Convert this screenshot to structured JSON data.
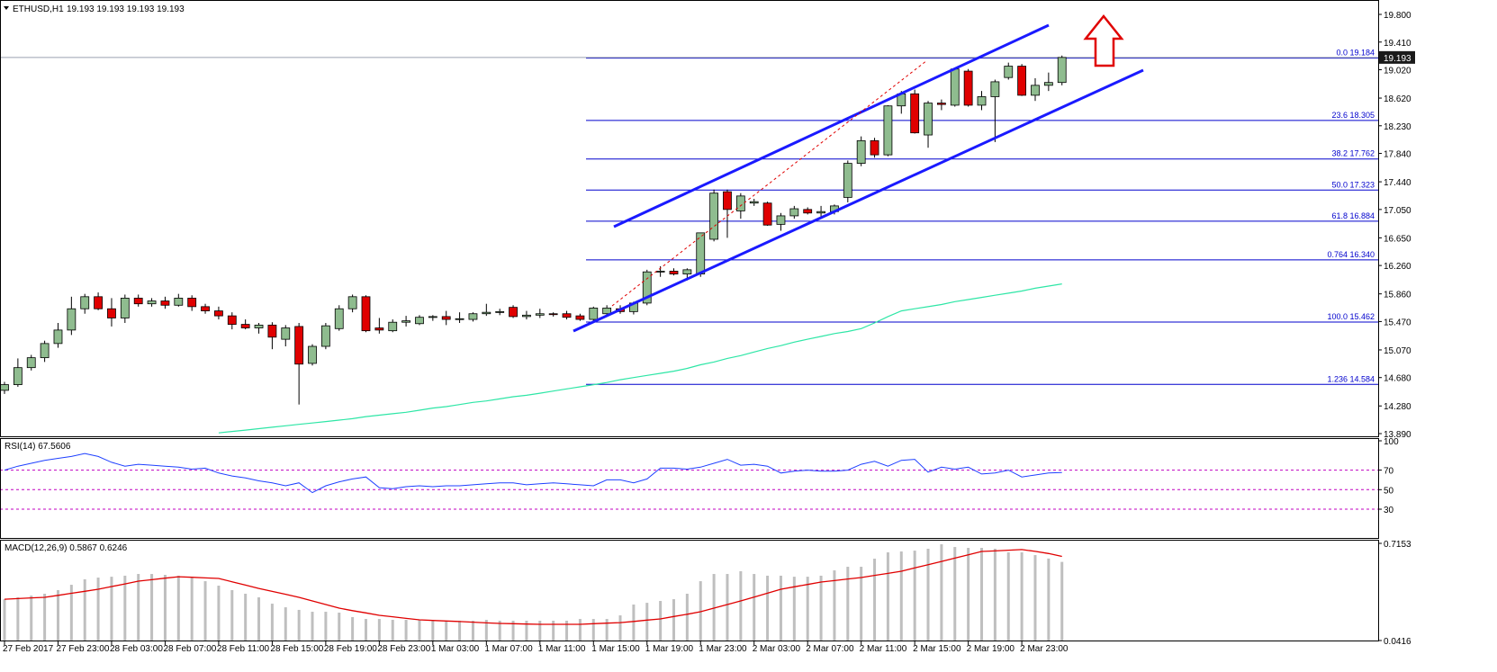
{
  "chart_data": [
    {
      "type": "candlestick",
      "title": "ETHUSD,H1",
      "subtitle": "19.193 19.193 19.193 19.193",
      "categories": [
        "27 Feb 2017",
        null,
        null,
        null,
        "27 Feb 23:00",
        null,
        null,
        null,
        "28 Feb 03:00",
        null,
        null,
        null,
        "28 Feb 07:00",
        null,
        null,
        null,
        "28 Feb 11:00",
        null,
        null,
        null,
        "28 Feb 15:00",
        null,
        null,
        null,
        "28 Feb 19:00",
        null,
        null,
        null,
        "28 Feb 23:00",
        null,
        null,
        null,
        "1 Mar 03:00",
        null,
        null,
        null,
        "1 Mar 07:00",
        null,
        null,
        null,
        "1 Mar 11:00",
        null,
        null,
        null,
        "1 Mar 15:00",
        null,
        null,
        null,
        "1 Mar 19:00",
        null,
        null,
        null,
        "1 Mar 23:00",
        null,
        null,
        null,
        "2 Mar 03:00",
        null,
        null,
        null,
        "2 Mar 07:00",
        null,
        null,
        null,
        "2 Mar 11:00",
        null,
        null,
        null,
        "2 Mar 15:00",
        null,
        null,
        null,
        "2 Mar 19:00",
        null,
        null,
        null,
        "2 Mar 23:00",
        null,
        null,
        null
      ],
      "open": [
        14.5,
        14.58,
        14.82,
        14.96,
        15.16,
        15.35,
        15.65,
        15.82,
        15.65,
        15.52,
        15.8,
        15.72,
        15.76,
        15.7,
        15.8,
        15.68,
        15.62,
        15.55,
        15.43,
        15.38,
        15.42,
        15.22,
        15.4,
        14.88,
        15.12,
        15.37,
        15.65,
        15.82,
        15.38,
        15.34,
        15.46,
        15.44,
        15.53,
        15.54,
        15.5,
        15.5,
        15.58,
        15.6,
        15.67,
        15.54,
        15.56,
        15.58,
        15.58,
        15.55,
        15.5,
        15.58,
        15.65,
        15.61,
        15.73,
        16.17,
        16.18,
        16.14,
        16.14,
        16.63,
        17.3,
        17.03,
        17.14,
        17.14,
        16.84,
        16.96,
        17.05,
        17.0,
        17.02,
        17.22,
        17.7,
        18.02,
        17.82,
        18.51,
        18.68,
        18.1,
        18.55,
        18.52,
        19.0,
        18.52,
        18.64,
        18.91,
        19.07,
        18.66,
        18.8,
        18.84
      ],
      "high": [
        14.62,
        14.95,
        15.0,
        15.2,
        15.45,
        15.82,
        15.86,
        15.88,
        15.8,
        15.85,
        15.85,
        15.8,
        15.82,
        15.86,
        15.84,
        15.72,
        15.68,
        15.6,
        15.5,
        15.45,
        15.46,
        15.42,
        15.45,
        15.15,
        15.45,
        15.7,
        15.85,
        15.84,
        15.52,
        15.5,
        15.55,
        15.56,
        15.56,
        15.62,
        15.6,
        15.6,
        15.72,
        15.65,
        15.7,
        15.62,
        15.65,
        15.6,
        15.62,
        15.58,
        15.68,
        15.7,
        15.7,
        15.75,
        16.2,
        16.25,
        16.22,
        16.22,
        16.72,
        17.33,
        17.33,
        17.28,
        17.2,
        17.16,
        17.0,
        17.1,
        17.08,
        17.1,
        17.12,
        17.74,
        18.08,
        18.06,
        18.52,
        18.72,
        18.74,
        18.58,
        18.6,
        19.05,
        19.03,
        18.72,
        18.88,
        19.12,
        19.1,
        18.9,
        18.98,
        19.22
      ],
      "low": [
        14.45,
        14.55,
        14.78,
        14.9,
        15.1,
        15.28,
        15.58,
        15.63,
        15.4,
        15.45,
        15.68,
        15.68,
        15.65,
        15.68,
        15.62,
        15.58,
        15.5,
        15.36,
        15.36,
        15.3,
        15.08,
        15.12,
        14.3,
        14.85,
        15.08,
        15.34,
        15.6,
        15.32,
        15.3,
        15.32,
        15.4,
        15.42,
        15.48,
        15.42,
        15.45,
        15.47,
        15.55,
        15.56,
        15.52,
        15.5,
        15.52,
        15.54,
        15.5,
        15.48,
        15.45,
        15.55,
        15.58,
        15.57,
        15.7,
        16.1,
        16.12,
        16.05,
        16.1,
        16.6,
        16.65,
        16.92,
        17.1,
        16.82,
        16.75,
        16.92,
        16.98,
        16.95,
        16.98,
        17.15,
        17.66,
        17.78,
        17.8,
        18.4,
        18.12,
        17.92,
        18.45,
        18.5,
        18.5,
        18.45,
        18.0,
        18.88,
        18.65,
        18.58,
        18.72,
        18.8
      ],
      "close": [
        14.58,
        14.82,
        14.96,
        15.16,
        15.35,
        15.65,
        15.82,
        15.65,
        15.52,
        15.8,
        15.72,
        15.76,
        15.7,
        15.8,
        15.68,
        15.62,
        15.55,
        15.43,
        15.38,
        15.42,
        15.25,
        15.38,
        14.87,
        15.12,
        15.41,
        15.65,
        15.82,
        15.34,
        15.35,
        15.46,
        15.48,
        15.53,
        15.54,
        15.5,
        15.51,
        15.58,
        15.6,
        15.61,
        15.54,
        15.56,
        15.58,
        15.57,
        15.53,
        15.5,
        15.66,
        15.66,
        15.61,
        15.73,
        16.17,
        16.18,
        16.14,
        16.2,
        16.72,
        17.28,
        17.05,
        17.24,
        17.16,
        16.83,
        16.96,
        17.06,
        17.0,
        17.02,
        17.1,
        17.7,
        18.02,
        17.82,
        18.51,
        18.68,
        18.13,
        18.55,
        18.53,
        19.03,
        18.52,
        18.64,
        18.85,
        19.07,
        18.66,
        18.8,
        18.84,
        19.193
      ],
      "up_color": "#8fbc8f",
      "down_color": "#e00000",
      "ma": {
        "color": "#2ee6a6",
        "values": [
          null,
          null,
          null,
          null,
          null,
          null,
          null,
          null,
          null,
          null,
          null,
          null,
          null,
          null,
          null,
          null,
          13.9,
          13.92,
          13.94,
          13.96,
          13.98,
          14.0,
          14.02,
          14.04,
          14.06,
          14.08,
          14.1,
          14.13,
          14.15,
          14.17,
          14.19,
          14.22,
          14.25,
          14.27,
          14.3,
          14.33,
          14.35,
          14.38,
          14.41,
          14.43,
          14.46,
          14.49,
          14.52,
          14.55,
          14.58,
          14.61,
          14.65,
          14.68,
          14.71,
          14.74,
          14.77,
          14.81,
          14.86,
          14.9,
          14.95,
          14.99,
          15.04,
          15.09,
          15.13,
          15.18,
          15.22,
          15.26,
          15.3,
          15.33,
          15.37,
          15.45,
          15.54,
          15.62,
          15.65,
          15.68,
          15.71,
          15.75,
          15.78,
          15.81,
          15.84,
          15.87,
          15.9,
          15.94,
          15.97,
          16.0
        ]
      },
      "ylim": [
        13.89,
        19.8
      ],
      "yticks": [
        {
          "value": 19.8,
          "label": "19.800"
        },
        {
          "value": 19.41,
          "label": "19.410"
        },
        {
          "value": 19.02,
          "label": "19.020"
        },
        {
          "value": 18.62,
          "label": "18.620"
        },
        {
          "value": 18.23,
          "label": "18.230"
        },
        {
          "value": 17.84,
          "label": "17.840"
        },
        {
          "value": 17.44,
          "label": "17.440"
        },
        {
          "value": 17.05,
          "label": "17.050"
        },
        {
          "value": 16.65,
          "label": "16.650"
        },
        {
          "value": 16.26,
          "label": "16.260"
        },
        {
          "value": 15.86,
          "label": "15.860"
        },
        {
          "value": 15.47,
          "label": "15.470"
        },
        {
          "value": 15.07,
          "label": "15.070"
        },
        {
          "value": 14.68,
          "label": "14.680"
        },
        {
          "value": 14.28,
          "label": "14.280"
        },
        {
          "value": 13.89,
          "label": "13.890"
        }
      ],
      "price_line": {
        "value": 19.193,
        "label": "19.193"
      },
      "fib_color": "#0000cd",
      "fib_levels": [
        {
          "value": 19.184,
          "label": "0.0  19.184"
        },
        {
          "value": 18.305,
          "label": "23.6  18.305"
        },
        {
          "value": 17.762,
          "label": "38.2  17.762"
        },
        {
          "value": 17.323,
          "label": "50.0  17.323"
        },
        {
          "value": 16.884,
          "label": "61.8  16.884"
        },
        {
          "value": 16.34,
          "label": "0.764  16.340"
        },
        {
          "value": 15.462,
          "label": "100.0  15.462"
        },
        {
          "value": 14.584,
          "label": "1.236  14.584"
        }
      ]
    },
    {
      "type": "line",
      "title": "RSI(14) 67.5606",
      "color": "#1e40ff",
      "values": [
        70,
        74,
        77,
        80,
        82,
        84,
        87,
        84,
        78,
        74,
        76,
        75,
        74,
        73,
        71,
        72,
        67,
        64,
        62,
        59,
        57,
        54,
        57,
        47,
        54,
        58,
        61,
        63,
        52,
        51,
        53,
        54,
        53,
        54,
        54,
        55,
        56,
        57,
        57,
        55,
        56,
        57,
        56,
        55,
        54,
        60,
        60,
        57,
        61,
        72,
        72,
        71,
        73,
        77,
        81,
        75,
        76,
        74,
        67,
        69,
        70,
        69,
        69,
        70,
        76,
        79,
        74,
        80,
        81,
        68,
        73,
        71,
        73,
        66,
        67,
        70,
        63,
        65,
        67,
        67.5606
      ],
      "ylim": [
        0,
        100
      ],
      "yticks": [
        100,
        70,
        50,
        30
      ],
      "levels": [
        70,
        50,
        30
      ],
      "level_color": "#c000c0"
    },
    {
      "type": "macd",
      "title": "MACD(12,26,9) 0.5867 0.6246",
      "series": [
        {
          "style": "bar",
          "color": "#bfbfbf",
          "values": [
            0.328,
            0.341,
            0.353,
            0.366,
            0.391,
            0.428,
            0.466,
            0.478,
            0.484,
            0.491,
            0.503,
            0.503,
            0.497,
            0.491,
            0.478,
            0.453,
            0.422,
            0.391,
            0.366,
            0.341,
            0.297,
            0.272,
            0.254,
            0.241,
            0.241,
            0.235,
            0.204,
            0.191,
            0.191,
            0.185,
            0.185,
            0.185,
            0.179,
            0.179,
            0.179,
            0.179,
            0.185,
            0.179,
            0.179,
            0.179,
            0.179,
            0.179,
            0.179,
            0.191,
            0.191,
            0.191,
            0.216,
            0.291,
            0.303,
            0.316,
            0.328,
            0.366,
            0.453,
            0.503,
            0.503,
            0.522,
            0.503,
            0.491,
            0.491,
            0.484,
            0.484,
            0.491,
            0.528,
            0.553,
            0.553,
            0.609,
            0.653,
            0.659,
            0.665,
            0.678,
            0.709,
            0.69,
            0.684,
            0.684,
            0.678,
            0.653,
            0.653,
            0.634,
            0.61,
            0.5867
          ]
        },
        {
          "style": "line",
          "color": "#e00000",
          "values": [
            0.328,
            0.332,
            0.337,
            0.341,
            0.355,
            0.369,
            0.383,
            0.397,
            0.416,
            0.434,
            0.453,
            0.463,
            0.474,
            0.484,
            0.48,
            0.476,
            0.472,
            0.449,
            0.426,
            0.403,
            0.382,
            0.362,
            0.341,
            0.316,
            0.291,
            0.266,
            0.249,
            0.233,
            0.216,
            0.206,
            0.195,
            0.185,
            0.181,
            0.177,
            0.173,
            0.169,
            0.164,
            0.16,
            0.158,
            0.156,
            0.154,
            0.154,
            0.154,
            0.154,
            0.158,
            0.162,
            0.166,
            0.174,
            0.183,
            0.191,
            0.208,
            0.224,
            0.241,
            0.266,
            0.291,
            0.316,
            0.343,
            0.37,
            0.397,
            0.414,
            0.43,
            0.447,
            0.457,
            0.468,
            0.478,
            0.493,
            0.507,
            0.522,
            0.545,
            0.567,
            0.59,
            0.613,
            0.636,
            0.659,
            0.663,
            0.668,
            0.672,
            0.66,
            0.645,
            0.6246
          ]
        }
      ],
      "ylim": [
        0.0416,
        0.7153
      ],
      "yticks": [
        0.7153,
        0.0416
      ]
    }
  ]
}
